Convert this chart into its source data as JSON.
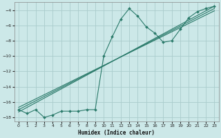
{
  "xlabel": "Humidex (Indice chaleur)",
  "bg_color": "#cce8e8",
  "grid_color": "#aacccc",
  "line_color": "#2a7a6a",
  "xlim": [
    -0.5,
    23.5
  ],
  "ylim": [
    -18.5,
    -3.0
  ],
  "xticks": [
    0,
    1,
    2,
    3,
    4,
    5,
    6,
    7,
    8,
    9,
    10,
    11,
    12,
    13,
    14,
    15,
    16,
    17,
    18,
    19,
    20,
    21,
    22,
    23
  ],
  "yticks": [
    -4,
    -6,
    -8,
    -10,
    -12,
    -14,
    -16,
    -18
  ],
  "wavy_x": [
    0,
    1,
    2,
    3,
    4,
    5,
    6,
    7,
    8,
    9,
    10,
    11,
    12,
    13,
    14,
    15,
    16,
    17,
    18,
    19,
    20,
    21,
    22,
    23
  ],
  "wavy_y": [
    -17.0,
    -17.5,
    -17.0,
    -18.0,
    -17.7,
    -17.2,
    -17.2,
    -17.2,
    -17.0,
    -17.0,
    -10.0,
    -7.5,
    -5.2,
    -3.8,
    -4.8,
    -6.2,
    -7.0,
    -8.2,
    -8.0,
    -6.5,
    -5.0,
    -4.2,
    -3.8,
    -3.5
  ],
  "line1_x": [
    0,
    23
  ],
  "line1_y": [
    -17.3,
    -3.5
  ],
  "line2_x": [
    0,
    23
  ],
  "line2_y": [
    -17.0,
    -3.8
  ],
  "line3_x": [
    0,
    23
  ],
  "line3_y": [
    -16.7,
    -4.1
  ]
}
